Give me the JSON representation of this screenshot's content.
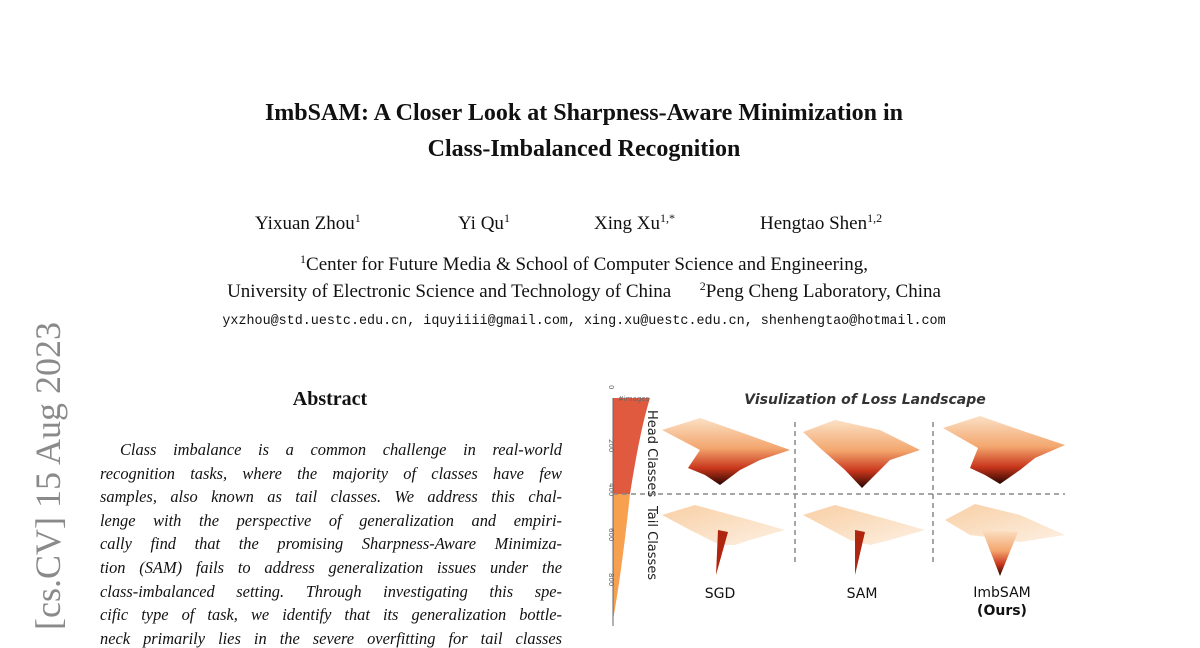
{
  "paper": {
    "title_lines": [
      "ImbSAM: A Closer Look at Sharpness-Aware Minimization in",
      "Class-Imbalanced Recognition"
    ],
    "authors": [
      {
        "name": "Yixuan Zhou",
        "sup": "1"
      },
      {
        "name": "Yi Qu",
        "sup": "1"
      },
      {
        "name": "Xing Xu",
        "sup": "1,*"
      },
      {
        "name": "Hengtao Shen",
        "sup": "1,2"
      }
    ],
    "affiliations": {
      "line1_sup": "1",
      "line1": "Center for Future Media & School of Computer Science and Engineering,",
      "line2a": "University of Electronic Science and Technology of China",
      "line2_sup": "2",
      "line2b": "Peng Cheng Laboratory, China"
    },
    "emails": "yxzhou@std.uestc.edu.cn, iquyiiii@gmail.com, xing.xu@uestc.edu.cn, shenhengtao@hotmail.com",
    "arxiv_stamp": "[cs.CV]  15 Aug 2023",
    "abstract_heading": "Abstract",
    "abstract_lines": [
      "Class imbalance is a common challenge in real-world",
      "recognition tasks, where the majority of classes have few",
      "samples, also known as tail classes. We address this chal-",
      "lenge with the perspective of generalization and empiri-",
      "cally find that the promising Sharpness-Aware Minimiza-",
      "tion (SAM) fails to address generalization issues under the",
      "class-imbalanced setting. Through investigating this spe-",
      "cific type of task, we identify that its generalization bottle-",
      "neck primarily lies in the severe overfitting for tail classes"
    ]
  },
  "figure": {
    "title": "Visulization of Loss Landscape",
    "axis_label": "#images",
    "axis_ticks": [
      "0",
      "200",
      "400",
      "600",
      "800"
    ],
    "row_labels": [
      "Head Classes",
      "Tail Classes"
    ],
    "columns": [
      "SGD",
      "SAM",
      "ImbSAM"
    ],
    "ours_label": "(Ours)",
    "colors": {
      "head": "#e05a3f",
      "tail": "#f7a050"
    }
  }
}
